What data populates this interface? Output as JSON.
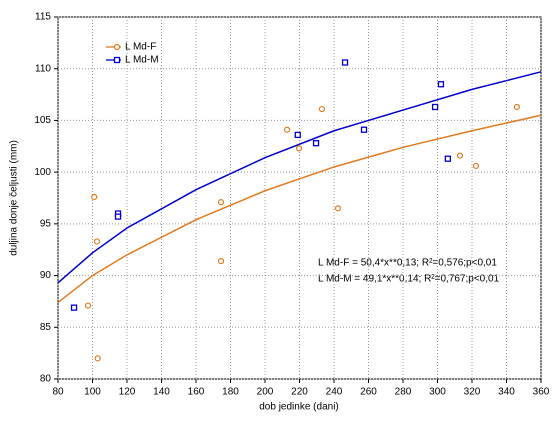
{
  "chart_data": {
    "type": "scatter",
    "x_label": "dob jedinke (dani)",
    "y_label": "duljina donje čeljusti (mm)",
    "xlim": [
      80,
      360
    ],
    "xticks": [
      80,
      100,
      120,
      140,
      160,
      180,
      200,
      220,
      240,
      260,
      280,
      300,
      320,
      340,
      360
    ],
    "ylim": [
      80,
      115
    ],
    "yticks": [
      80,
      85,
      90,
      95,
      100,
      105,
      110,
      115
    ],
    "grid": true,
    "legend": "upper left",
    "series": [
      {
        "name": "L Md-F",
        "color": "#e07b20",
        "marker": "circle",
        "x": [
          101,
          102.6,
          97.4,
          103,
          174.5,
          174.5,
          212.8,
          219.7,
          233,
          242.3,
          313,
          322.3,
          346
        ],
        "values": [
          97.6,
          93.3,
          87.1,
          82,
          97.1,
          91.4,
          104.1,
          102.3,
          106.1,
          96.5,
          101.6,
          100.6,
          106.3
        ],
        "fit": {
          "x": [
            80,
            100,
            120,
            160,
            200,
            240,
            280,
            320,
            360
          ],
          "values": [
            87.4,
            90,
            92,
            95.4,
            98.2,
            100.5,
            102.4,
            104,
            105.5
          ]
        }
      },
      {
        "name": "L Md-M",
        "color": "#0000cc",
        "marker": "square",
        "x": [
          89.3,
          114.8,
          114.8,
          219,
          229.6,
          246.4,
          257.4,
          298.6,
          302,
          306
        ],
        "values": [
          86.9,
          96,
          95.7,
          103.6,
          102.8,
          110.6,
          104.1,
          106.3,
          108.5,
          101.3
        ],
        "fit": {
          "x": [
            80,
            100,
            120,
            160,
            200,
            240,
            280,
            320,
            360
          ],
          "values": [
            89.3,
            92.2,
            94.6,
            98.3,
            101.4,
            104,
            106,
            108,
            109.7
          ]
        }
      }
    ],
    "annotations": [
      "L Md-F = 50,4*x**0,13; R²=0,576;p<0,01",
      "L Md-M = 49,1*x**0,14; R²=0,767;p<0,01"
    ]
  }
}
